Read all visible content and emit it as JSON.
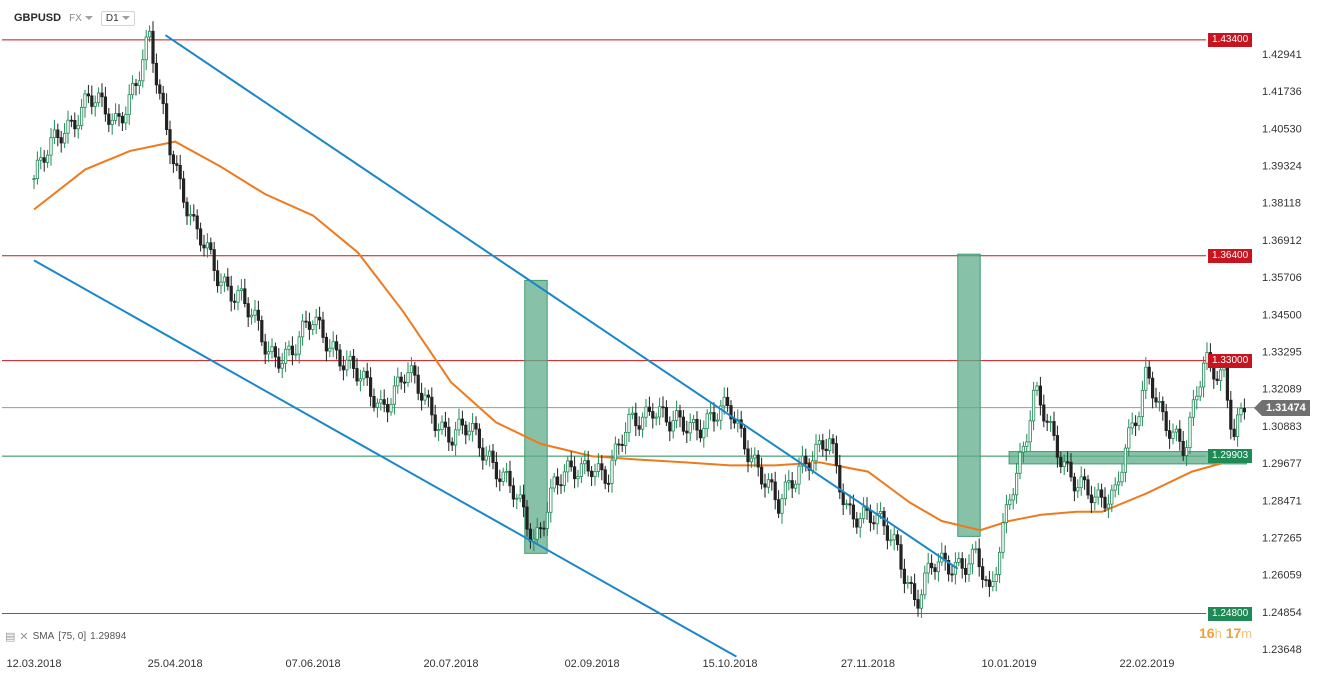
{
  "header": {
    "symbol": "GBPUSD",
    "market": "FX",
    "interval": "D1"
  },
  "indicator": {
    "label": "SMA",
    "params": "[75, 0]",
    "value": "1.29894"
  },
  "timer": {
    "hours": "16",
    "h_unit": "h",
    "minutes": "17",
    "m_unit": "m"
  },
  "colors": {
    "up_candle": "#1f8a55",
    "down_candle": "#222222",
    "channel": "#1a87c8",
    "sma": "#ee7a1e",
    "resistance": "#c8141e",
    "support": "#1f8a55",
    "zone": "#5fae8b"
  },
  "chart_data": {
    "type": "candlestick",
    "y_axis_ticks": [
      "1.42941",
      "1.41736",
      "1.40530",
      "1.39324",
      "1.38118",
      "1.36912",
      "1.35706",
      "1.34500",
      "1.33295",
      "1.32089",
      "1.30883",
      "1.29677",
      "1.28471",
      "1.27265",
      "1.26059",
      "1.24854",
      "1.23648"
    ],
    "x_axis_ticks": [
      "12.03.2018",
      "25.04.2018",
      "07.06.2018",
      "20.07.2018",
      "02.09.2018",
      "15.10.2018",
      "27.11.2018",
      "10.01.2019",
      "22.02.2019"
    ],
    "horizontal_levels": [
      {
        "label": "1.43400",
        "value": 1.434,
        "color": "red"
      },
      {
        "label": "1.36400",
        "value": 1.364,
        "color": "red"
      },
      {
        "label": "1.33000",
        "value": 1.33,
        "color": "red"
      },
      {
        "label": "1.29903",
        "value": 1.29903,
        "color": "green"
      },
      {
        "label": "1.24800",
        "value": 1.248,
        "color": "green"
      }
    ],
    "last_price": {
      "label": "1.31474",
      "value": 1.31474
    },
    "series": [
      {
        "kind": "close_path",
        "points": [
          [
            "12.03.2018",
            1.389
          ],
          [
            "21.03.2018",
            1.405
          ],
          [
            "29.03.2018",
            1.415
          ],
          [
            "06.04.2018",
            1.407
          ],
          [
            "13.04.2018",
            1.421
          ],
          [
            "17.04.2018",
            1.433
          ],
          [
            "20.04.2018",
            1.415
          ],
          [
            "25.04.2018",
            1.395
          ],
          [
            "01.05.2018",
            1.372
          ],
          [
            "08.05.2018",
            1.358
          ],
          [
            "15.05.2018",
            1.352
          ],
          [
            "24.05.2018",
            1.332
          ],
          [
            "01.06.2018",
            1.334
          ],
          [
            "07.06.2018",
            1.342
          ],
          [
            "13.06.2018",
            1.336
          ],
          [
            "20.06.2018",
            1.325
          ],
          [
            "28.06.2018",
            1.316
          ],
          [
            "06.07.2018",
            1.325
          ],
          [
            "13.07.2018",
            1.316
          ],
          [
            "20.07.2018",
            1.305
          ],
          [
            "26.07.2018",
            1.307
          ],
          [
            "01.08.2018",
            1.3
          ],
          [
            "08.08.2018",
            1.287
          ],
          [
            "15.08.2018",
            1.272
          ],
          [
            "21.08.2018",
            1.29
          ],
          [
            "28.08.2018",
            1.293
          ],
          [
            "02.09.2018",
            1.298
          ],
          [
            "07.09.2018",
            1.292
          ],
          [
            "14.09.2018",
            1.31
          ],
          [
            "21.09.2018",
            1.316
          ],
          [
            "26.09.2018",
            1.308
          ],
          [
            "04.10.2018",
            1.31
          ],
          [
            "15.10.2018",
            1.313
          ],
          [
            "22.10.2018",
            1.3
          ],
          [
            "30.10.2018",
            1.281
          ],
          [
            "06.11.2018",
            1.298
          ],
          [
            "15.11.2018",
            1.302
          ],
          [
            "20.11.2018",
            1.283
          ],
          [
            "27.11.2018",
            1.28
          ],
          [
            "06.12.2018",
            1.27
          ],
          [
            "12.12.2018",
            1.252
          ],
          [
            "17.12.2018",
            1.262
          ],
          [
            "24.12.2018",
            1.265
          ],
          [
            "31.12.2018",
            1.266
          ],
          [
            "04.01.2019",
            1.251
          ],
          [
            "10.01.2019",
            1.288
          ],
          [
            "15.01.2019",
            1.303
          ],
          [
            "18.01.2019",
            1.318
          ],
          [
            "25.01.2019",
            1.303
          ],
          [
            "31.01.2019",
            1.29
          ],
          [
            "06.02.2019",
            1.283
          ],
          [
            "12.02.2019",
            1.289
          ],
          [
            "15.02.2019",
            1.302
          ],
          [
            "20.02.2019",
            1.313
          ],
          [
            "22.02.2019",
            1.325
          ],
          [
            "26.02.2019",
            1.315
          ],
          [
            "01.03.2019",
            1.31
          ],
          [
            "06.03.2019",
            1.3
          ],
          [
            "12.03.2019",
            1.33
          ],
          [
            "18.03.2019",
            1.327
          ],
          [
            "21.03.2019",
            1.305
          ],
          [
            "25.03.2019",
            1.31474
          ]
        ]
      },
      {
        "name": "SMA [75, 0]",
        "kind": "line",
        "points": [
          [
            "12.03.2018",
            1.379
          ],
          [
            "28.03.2018",
            1.392
          ],
          [
            "11.04.2018",
            1.398
          ],
          [
            "25.04.2018",
            1.401
          ],
          [
            "09.05.2018",
            1.393
          ],
          [
            "23.05.2018",
            1.384
          ],
          [
            "07.06.2018",
            1.377
          ],
          [
            "21.06.2018",
            1.365
          ],
          [
            "05.07.2018",
            1.346
          ],
          [
            "20.07.2018",
            1.323
          ],
          [
            "03.08.2018",
            1.31
          ],
          [
            "17.08.2018",
            1.303
          ],
          [
            "02.09.2018",
            1.299
          ],
          [
            "15.09.2018",
            1.298
          ],
          [
            "01.10.2018",
            1.297
          ],
          [
            "15.10.2018",
            1.296
          ],
          [
            "29.10.2018",
            1.296
          ],
          [
            "12.11.2018",
            1.297
          ],
          [
            "27.11.2018",
            1.294
          ],
          [
            "10.12.2018",
            1.284
          ],
          [
            "20.12.2018",
            1.278
          ],
          [
            "01.01.2019",
            1.275
          ],
          [
            "10.01.2019",
            1.278
          ],
          [
            "20.01.2019",
            1.28
          ],
          [
            "31.01.2019",
            1.281
          ],
          [
            "08.02.2019",
            1.281
          ],
          [
            "22.02.2019",
            1.287
          ],
          [
            "08.03.2019",
            1.294
          ],
          [
            "25.03.2019",
            1.29894
          ]
        ]
      }
    ],
    "channel_lines": [
      {
        "from": [
          "22.04.2018",
          1.4355
        ],
        "to": [
          "25.12.2018",
          1.2625
        ]
      },
      {
        "from": [
          "12.03.2018",
          1.3625
        ],
        "to": [
          "17.10.2018",
          1.234
        ]
      }
    ],
    "zones": [
      {
        "from": "12.08.2018",
        "to": "19.08.2018",
        "low": 1.2675,
        "high": 1.356
      },
      {
        "from": "25.12.2018",
        "to": "01.01.2019",
        "low": 1.273,
        "high": 1.3645
      },
      {
        "from": "10.01.2019",
        "to": "25.03.2019",
        "low": 1.2965,
        "high": 1.3005
      }
    ],
    "ylim": [
      1.2315,
      1.4395
    ]
  }
}
